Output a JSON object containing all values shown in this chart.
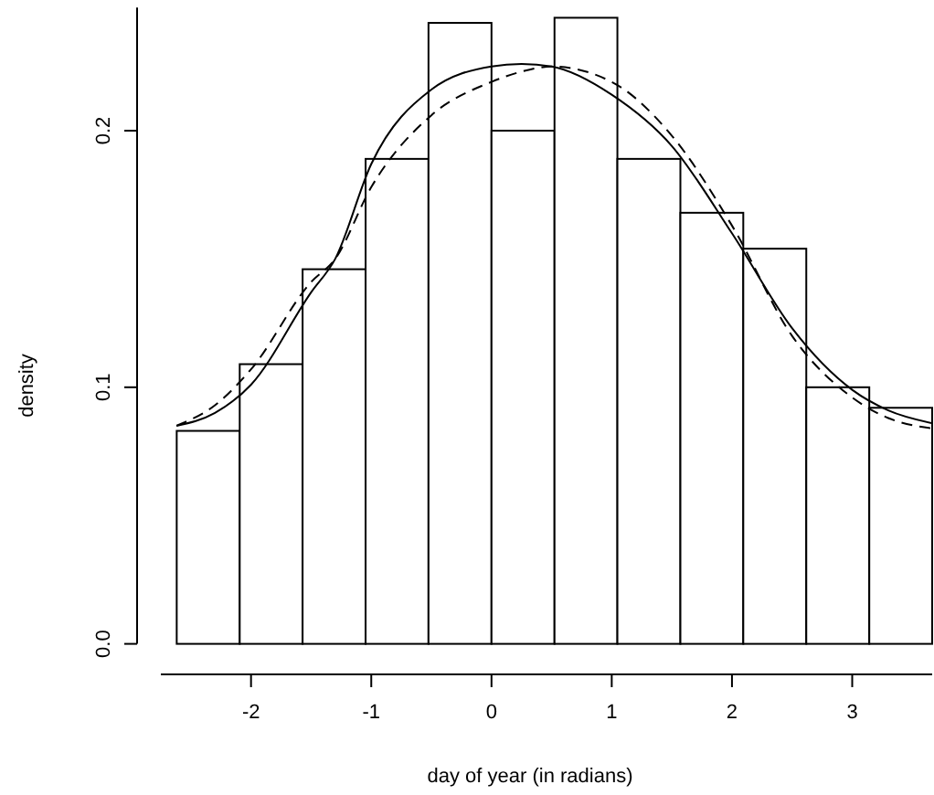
{
  "chart_data": {
    "type": "histogram",
    "xlabel": "day of year (in radians)",
    "ylabel": "density",
    "bins": [
      -2.618,
      -2.094,
      -1.571,
      -1.047,
      -0.524,
      0,
      0.524,
      1.047,
      1.571,
      2.094,
      2.618,
      3.142,
      3.665
    ],
    "xlim": [
      -2.75,
      3.665
    ],
    "ylim": [
      0,
      0.248
    ],
    "xticks": [
      -2,
      -1,
      0,
      1,
      2,
      3
    ],
    "yticks": [
      {
        "value": 0,
        "label": "0.0"
      },
      {
        "value": 0.1,
        "label": "0.1"
      },
      {
        "value": 0.2,
        "label": "0.2"
      }
    ],
    "grid": false,
    "marker": "none",
    "series": [
      {
        "color": "#000000",
        "values": [
          0.083,
          0.109,
          0.146,
          0.189,
          0.242,
          0.2,
          0.244,
          0.189,
          0.168,
          0.154,
          0.1,
          0.092
        ]
      },
      {
        "type": "line",
        "color": "#000000",
        "line_style": "solid",
        "x": [
          -2.62,
          -2.3,
          -2,
          -1.5,
          -1.3,
          -1,
          -0.5,
          0,
          0.25,
          0.5,
          1,
          1.5,
          2,
          2.5,
          3,
          3.3,
          3.665
        ],
        "values": [
          0.085,
          0.09,
          0.101,
          0.137,
          0.15,
          0.187,
          0.216,
          0.225,
          0.226,
          0.225,
          0.214,
          0.194,
          0.16,
          0.123,
          0.099,
          0.091,
          0.086
        ]
      },
      {
        "type": "line",
        "color": "#000000",
        "line_style": "dashed",
        "x": [
          -2.62,
          -2.3,
          -2,
          -1.5,
          -1.3,
          -1,
          -0.5,
          0,
          0.25,
          0.5,
          1,
          1.5,
          2,
          2.5,
          3,
          3.3,
          3.665
        ],
        "values": [
          0.085,
          0.093,
          0.107,
          0.141,
          0.15,
          0.178,
          0.206,
          0.219,
          0.223,
          0.225,
          0.219,
          0.198,
          0.163,
          0.12,
          0.096,
          0.088,
          0.084
        ]
      }
    ]
  }
}
